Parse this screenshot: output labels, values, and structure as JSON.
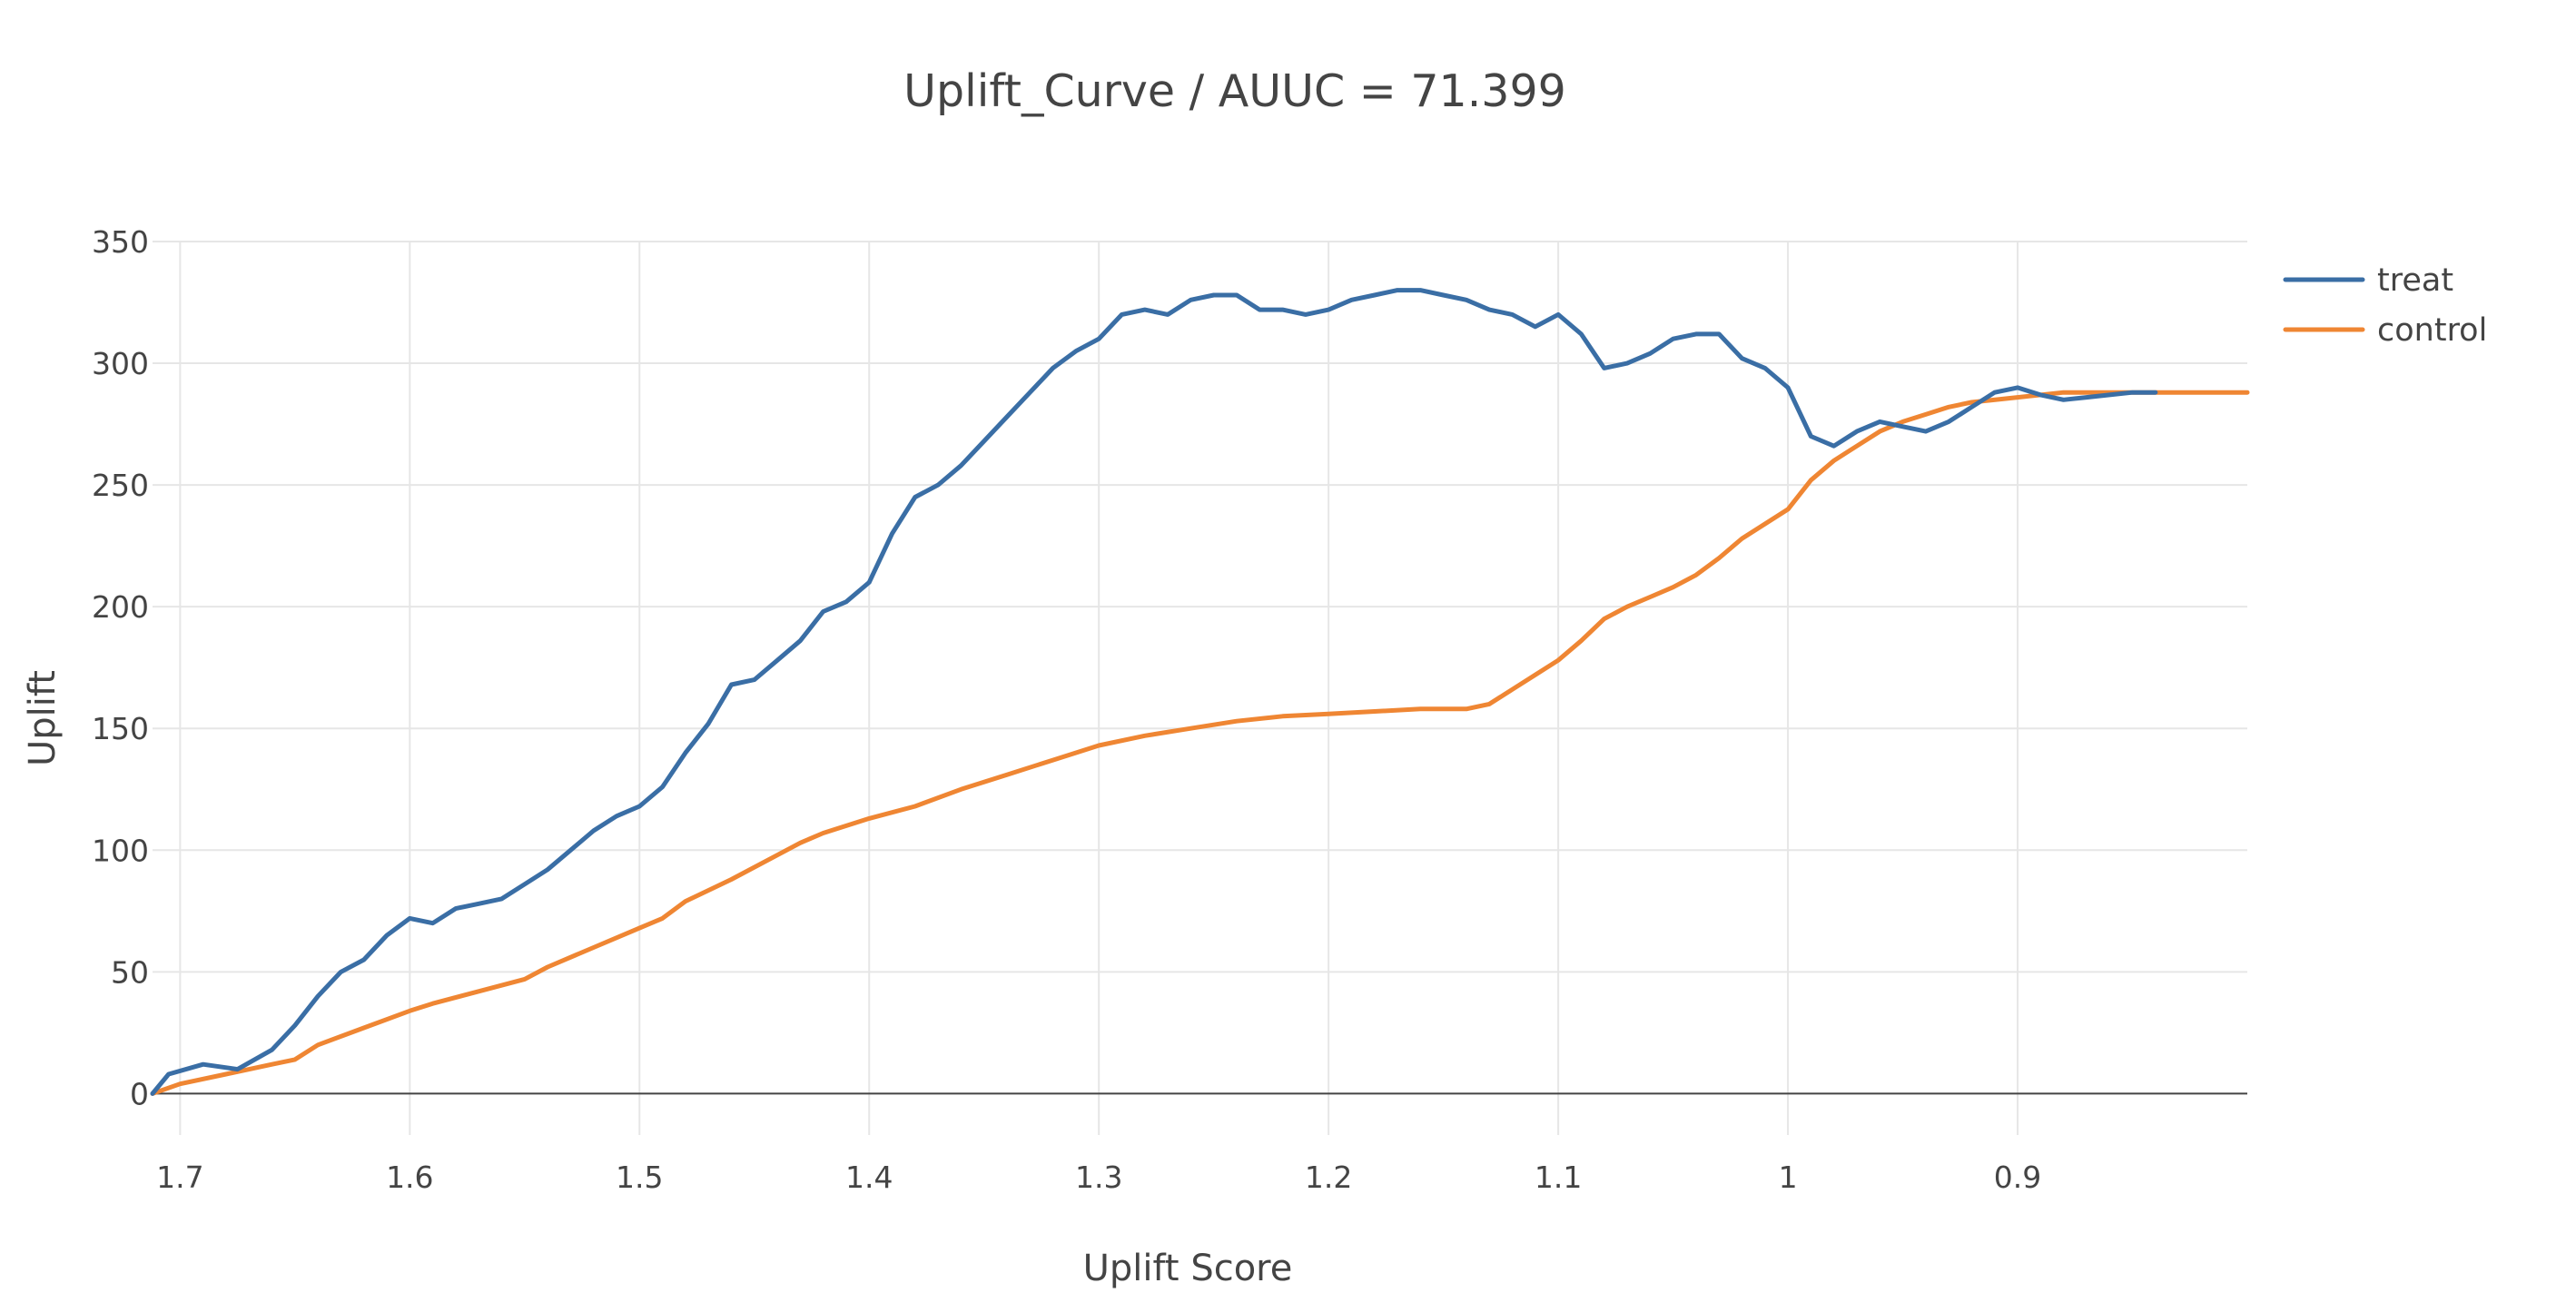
{
  "chart_data": {
    "type": "line",
    "title": "Uplift_Curve / AUUC = 71.399",
    "xlabel": "Uplift Score",
    "ylabel": "Uplift",
    "x_reversed": true,
    "xlim": [
      1.712,
      0.8
    ],
    "ylim": [
      -17,
      350
    ],
    "x_ticks": [
      1.7,
      1.6,
      1.5,
      1.4,
      1.3,
      1.2,
      1.1,
      1,
      0.9
    ],
    "x_tick_labels": [
      "1.7",
      "1.6",
      "1.5",
      "1.4",
      "1.3",
      "1.2",
      "1.1",
      "1",
      "0.9"
    ],
    "y_ticks": [
      0,
      50,
      100,
      150,
      200,
      250,
      300,
      350
    ],
    "y_tick_labels": [
      "0",
      "50",
      "100",
      "150",
      "200",
      "250",
      "300",
      "350"
    ],
    "grid": true,
    "legend_position": "top-right",
    "series": [
      {
        "name": "treat",
        "color": "#3a6ea5",
        "x": [
          1.712,
          1.705,
          1.69,
          1.675,
          1.66,
          1.65,
          1.64,
          1.63,
          1.62,
          1.61,
          1.6,
          1.59,
          1.58,
          1.57,
          1.56,
          1.55,
          1.54,
          1.53,
          1.52,
          1.51,
          1.5,
          1.49,
          1.48,
          1.47,
          1.46,
          1.45,
          1.44,
          1.43,
          1.42,
          1.41,
          1.4,
          1.39,
          1.38,
          1.37,
          1.36,
          1.35,
          1.34,
          1.33,
          1.32,
          1.31,
          1.3,
          1.29,
          1.28,
          1.27,
          1.26,
          1.25,
          1.24,
          1.23,
          1.22,
          1.21,
          1.2,
          1.19,
          1.18,
          1.17,
          1.16,
          1.15,
          1.14,
          1.13,
          1.12,
          1.11,
          1.1,
          1.09,
          1.08,
          1.07,
          1.06,
          1.05,
          1.04,
          1.03,
          1.02,
          1.01,
          1.0,
          0.99,
          0.98,
          0.97,
          0.96,
          0.95,
          0.94,
          0.93,
          0.92,
          0.91,
          0.9,
          0.89,
          0.88,
          0.87,
          0.86,
          0.85,
          0.84
        ],
        "y": [
          0,
          8,
          12,
          10,
          18,
          28,
          40,
          50,
          55,
          65,
          72,
          70,
          76,
          78,
          80,
          86,
          92,
          100,
          108,
          114,
          118,
          126,
          140,
          152,
          168,
          170,
          178,
          186,
          198,
          202,
          210,
          230,
          245,
          250,
          258,
          268,
          278,
          288,
          298,
          305,
          310,
          320,
          322,
          320,
          326,
          328,
          328,
          322,
          322,
          320,
          322,
          326,
          328,
          330,
          330,
          328,
          326,
          322,
          320,
          315,
          320,
          312,
          298,
          300,
          304,
          310,
          312,
          312,
          302,
          298,
          290,
          270,
          266,
          272,
          276,
          274,
          272,
          276,
          282,
          288,
          290,
          287,
          285,
          286,
          287,
          288,
          288
        ]
      },
      {
        "name": "control",
        "color": "#ef8633",
        "x": [
          1.712,
          1.7,
          1.68,
          1.66,
          1.65,
          1.64,
          1.62,
          1.6,
          1.59,
          1.57,
          1.55,
          1.54,
          1.52,
          1.5,
          1.49,
          1.48,
          1.46,
          1.44,
          1.43,
          1.42,
          1.4,
          1.38,
          1.36,
          1.34,
          1.32,
          1.3,
          1.28,
          1.26,
          1.24,
          1.22,
          1.2,
          1.18,
          1.16,
          1.14,
          1.13,
          1.12,
          1.11,
          1.1,
          1.09,
          1.08,
          1.07,
          1.06,
          1.05,
          1.04,
          1.03,
          1.02,
          1.0,
          0.99,
          0.98,
          0.97,
          0.96,
          0.95,
          0.94,
          0.93,
          0.92,
          0.9,
          0.88,
          0.86,
          0.84,
          0.82,
          0.8
        ],
        "y": [
          0,
          4,
          8,
          12,
          14,
          20,
          27,
          34,
          37,
          42,
          47,
          52,
          60,
          68,
          72,
          79,
          88,
          98,
          103,
          107,
          113,
          118,
          125,
          131,
          137,
          143,
          147,
          150,
          153,
          155,
          156,
          157,
          158,
          158,
          160,
          166,
          172,
          178,
          186,
          195,
          200,
          204,
          208,
          213,
          220,
          228,
          240,
          252,
          260,
          266,
          272,
          276,
          279,
          282,
          284,
          286,
          288,
          288,
          288,
          288,
          288
        ]
      }
    ]
  }
}
